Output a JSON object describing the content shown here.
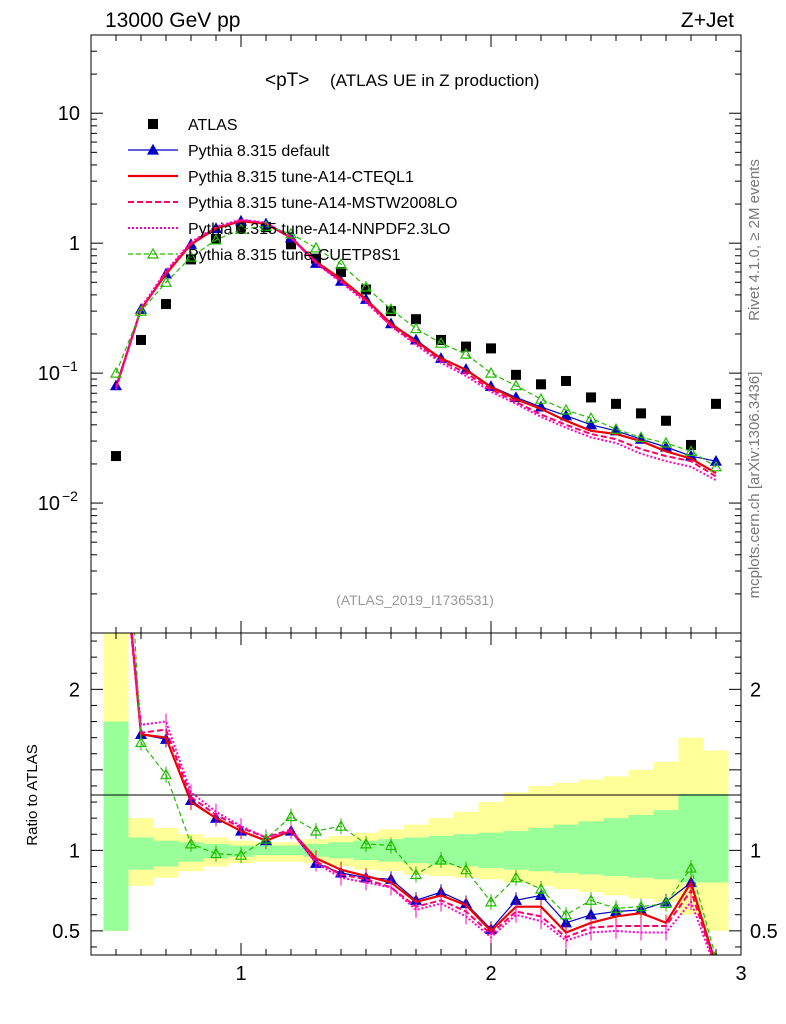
{
  "header": {
    "left": "13000 GeV pp",
    "right": "Z+Jet",
    "side_top": "Rivet 4.1.0, ≥ 2M events",
    "side_bottom": "mcplots.cern.ch [arXiv:1306.3436]",
    "analysis_id": "(ATLAS_2019_I1736531)"
  },
  "colors": {
    "atlas": "#000000",
    "default": "#0000cc",
    "cteql1": "#ee0000",
    "mstw": "#ff0066",
    "nnpdf": "#ff00cc",
    "cuetp": "#22bb00",
    "band_inner": "#99ff99",
    "band_outer": "#ffff99"
  },
  "chart_data": [
    {
      "type": "line",
      "title_main": "<pT>",
      "title_sub": "(ATLAS UE in Z production)",
      "yscale": "log",
      "xlim": [
        0.4,
        3.0
      ],
      "ylim": [
        0.001,
        40
      ],
      "y_ticks": [
        {
          "value": 10,
          "label": "10"
        },
        {
          "value": 1,
          "label": "1"
        },
        {
          "value": 0.1,
          "label": "10",
          "exp": "−1"
        },
        {
          "value": 0.01,
          "label": "10",
          "exp": "−2"
        }
      ],
      "legend_position": "top-left",
      "x": [
        0.5,
        0.6,
        0.7,
        0.8,
        0.9,
        1.0,
        1.1,
        1.2,
        1.3,
        1.4,
        1.5,
        1.6,
        1.7,
        1.8,
        1.9,
        2.0,
        2.1,
        2.2,
        2.3,
        2.4,
        2.5,
        2.6,
        2.7,
        2.8,
        2.9
      ],
      "series": [
        {
          "name": "ATLAS",
          "style": "data",
          "values": [
            0.023,
            0.18,
            0.34,
            0.75,
            1.08,
            1.32,
            1.33,
            0.98,
            0.76,
            0.6,
            0.44,
            0.3,
            0.26,
            0.18,
            0.16,
            0.155,
            0.097,
            0.082,
            0.087,
            0.065,
            0.058,
            0.049,
            0.043,
            0.028,
            0.058
          ]
        },
        {
          "name": "Pythia 8.315 default",
          "style": "default",
          "values": [
            0.08,
            0.31,
            0.58,
            0.98,
            1.3,
            1.48,
            1.41,
            1.1,
            0.7,
            0.51,
            0.37,
            0.24,
            0.18,
            0.13,
            0.107,
            0.079,
            0.065,
            0.055,
            0.047,
            0.04,
            0.036,
            0.031,
            0.027,
            0.023,
            0.021
          ]
        },
        {
          "name": "Pythia 8.315 tune-A14-CTEQL1",
          "style": "cteql1",
          "values": [
            0.078,
            0.31,
            0.58,
            0.98,
            1.3,
            1.48,
            1.41,
            1.1,
            0.72,
            0.53,
            0.37,
            0.24,
            0.175,
            0.13,
            0.106,
            0.078,
            0.063,
            0.053,
            0.043,
            0.036,
            0.034,
            0.03,
            0.025,
            0.022,
            0.017
          ]
        },
        {
          "name": "Pythia 8.315 tune-A14-MSTW2008LO",
          "style": "mstw",
          "values": [
            0.076,
            0.31,
            0.6,
            1.0,
            1.32,
            1.5,
            1.43,
            1.12,
            0.71,
            0.51,
            0.36,
            0.23,
            0.17,
            0.125,
            0.1,
            0.075,
            0.06,
            0.048,
            0.04,
            0.034,
            0.031,
            0.026,
            0.023,
            0.021,
            0.016
          ]
        },
        {
          "name": "Pythia 8.315 tune-A14-NNPDF2.3LO",
          "style": "nnpdf",
          "values": [
            0.075,
            0.32,
            0.61,
            1.02,
            1.34,
            1.52,
            1.44,
            1.1,
            0.7,
            0.5,
            0.35,
            0.23,
            0.165,
            0.12,
            0.095,
            0.072,
            0.058,
            0.046,
            0.038,
            0.032,
            0.029,
            0.024,
            0.021,
            0.019,
            0.015
          ]
        },
        {
          "name": "Pythia 8.315 tune-CUETP8S1",
          "style": "cuetp",
          "values": [
            0.1,
            0.3,
            0.5,
            0.78,
            1.06,
            1.28,
            1.35,
            1.18,
            0.92,
            0.69,
            0.46,
            0.31,
            0.22,
            0.17,
            0.14,
            0.1,
            0.08,
            0.063,
            0.052,
            0.045,
            0.037,
            0.032,
            0.029,
            0.025,
            0.019
          ]
        }
      ]
    },
    {
      "type": "line",
      "ylabel": "Ratio to ATLAS",
      "xlim": [
        0.4,
        3.0
      ],
      "ylim": [
        0.35,
        2.35
      ],
      "x_ticks": [
        1,
        2,
        3
      ],
      "y_ticks": [
        {
          "value": 2,
          "label": "2"
        },
        {
          "value": 1,
          "label": "1"
        },
        {
          "value": 0.5,
          "label": "0.5"
        }
      ],
      "x": [
        0.5,
        0.6,
        0.7,
        0.8,
        0.9,
        1.0,
        1.1,
        1.2,
        1.3,
        1.4,
        1.5,
        1.6,
        1.7,
        1.8,
        1.9,
        2.0,
        2.1,
        2.2,
        2.3,
        2.4,
        2.5,
        2.6,
        2.7,
        2.8,
        2.9
      ],
      "band_inner": [
        [
          0.5,
          1.8
        ],
        [
          0.88,
          1.08
        ],
        [
          0.9,
          1.06
        ],
        [
          0.93,
          1.05
        ],
        [
          0.95,
          1.04
        ],
        [
          0.96,
          1.03
        ],
        [
          0.97,
          1.03
        ],
        [
          0.97,
          1.03
        ],
        [
          0.96,
          1.04
        ],
        [
          0.95,
          1.05
        ],
        [
          0.94,
          1.06
        ],
        [
          0.93,
          1.07
        ],
        [
          0.92,
          1.08
        ],
        [
          0.91,
          1.09
        ],
        [
          0.9,
          1.1
        ],
        [
          0.89,
          1.11
        ],
        [
          0.88,
          1.12
        ],
        [
          0.87,
          1.14
        ],
        [
          0.86,
          1.16
        ],
        [
          0.85,
          1.18
        ],
        [
          0.84,
          1.2
        ],
        [
          0.83,
          1.22
        ],
        [
          0.82,
          1.25
        ],
        [
          0.8,
          1.35
        ],
        [
          0.8,
          1.35
        ]
      ],
      "band_outer": [
        [
          0.5,
          2.35
        ],
        [
          0.78,
          1.2
        ],
        [
          0.83,
          1.14
        ],
        [
          0.87,
          1.1
        ],
        [
          0.9,
          1.08
        ],
        [
          0.92,
          1.06
        ],
        [
          0.93,
          1.05
        ],
        [
          0.93,
          1.05
        ],
        [
          0.92,
          1.07
        ],
        [
          0.9,
          1.09
        ],
        [
          0.88,
          1.11
        ],
        [
          0.87,
          1.13
        ],
        [
          0.85,
          1.16
        ],
        [
          0.84,
          1.2
        ],
        [
          0.83,
          1.24
        ],
        [
          0.82,
          1.3
        ],
        [
          0.8,
          1.36
        ],
        [
          0.78,
          1.4
        ],
        [
          0.76,
          1.42
        ],
        [
          0.74,
          1.44
        ],
        [
          0.72,
          1.46
        ],
        [
          0.7,
          1.5
        ],
        [
          0.68,
          1.55
        ],
        [
          0.6,
          1.7
        ],
        [
          0.5,
          1.62
        ]
      ],
      "series": [
        {
          "name": "Pythia 8.315 default",
          "style": "default",
          "values": [
            3.5,
            1.72,
            1.69,
            1.31,
            1.2,
            1.12,
            1.06,
            1.12,
            0.92,
            0.86,
            0.83,
            0.82,
            0.69,
            0.74,
            0.67,
            0.51,
            0.69,
            0.72,
            0.55,
            0.6,
            0.62,
            0.63,
            0.68,
            0.8,
            0.3
          ]
        },
        {
          "name": "Pythia 8.315 tune-A14-CTEQL1",
          "style": "cteql1",
          "values": [
            3.4,
            1.72,
            1.7,
            1.3,
            1.2,
            1.12,
            1.06,
            1.12,
            0.95,
            0.88,
            0.84,
            0.8,
            0.68,
            0.72,
            0.66,
            0.5,
            0.65,
            0.65,
            0.49,
            0.55,
            0.59,
            0.61,
            0.55,
            0.8,
            0.28
          ]
        },
        {
          "name": "Pythia 8.315 tune-A14-MSTW2008LO",
          "style": "mstw",
          "values": [
            3.3,
            1.73,
            1.75,
            1.33,
            1.22,
            1.14,
            1.08,
            1.13,
            0.93,
            0.85,
            0.82,
            0.77,
            0.65,
            0.69,
            0.62,
            0.48,
            0.62,
            0.59,
            0.46,
            0.52,
            0.53,
            0.53,
            0.53,
            0.75,
            0.27
          ]
        },
        {
          "name": "Pythia 8.315 tune-A14-NNPDF2.3LO",
          "style": "nnpdf",
          "values": [
            3.3,
            1.78,
            1.8,
            1.36,
            1.24,
            1.15,
            1.08,
            1.12,
            0.92,
            0.83,
            0.8,
            0.77,
            0.63,
            0.67,
            0.59,
            0.46,
            0.6,
            0.56,
            0.44,
            0.49,
            0.5,
            0.49,
            0.49,
            0.68,
            0.26
          ]
        },
        {
          "name": "Pythia 8.315 tune-CUETP8S1",
          "style": "cuetp",
          "values": [
            4.3,
            1.67,
            1.47,
            1.04,
            0.98,
            0.97,
            1.07,
            1.21,
            1.12,
            1.15,
            1.04,
            1.03,
            0.85,
            0.94,
            0.88,
            0.68,
            0.83,
            0.76,
            0.6,
            0.69,
            0.64,
            0.65,
            0.67,
            0.89,
            0.33
          ]
        }
      ]
    }
  ]
}
